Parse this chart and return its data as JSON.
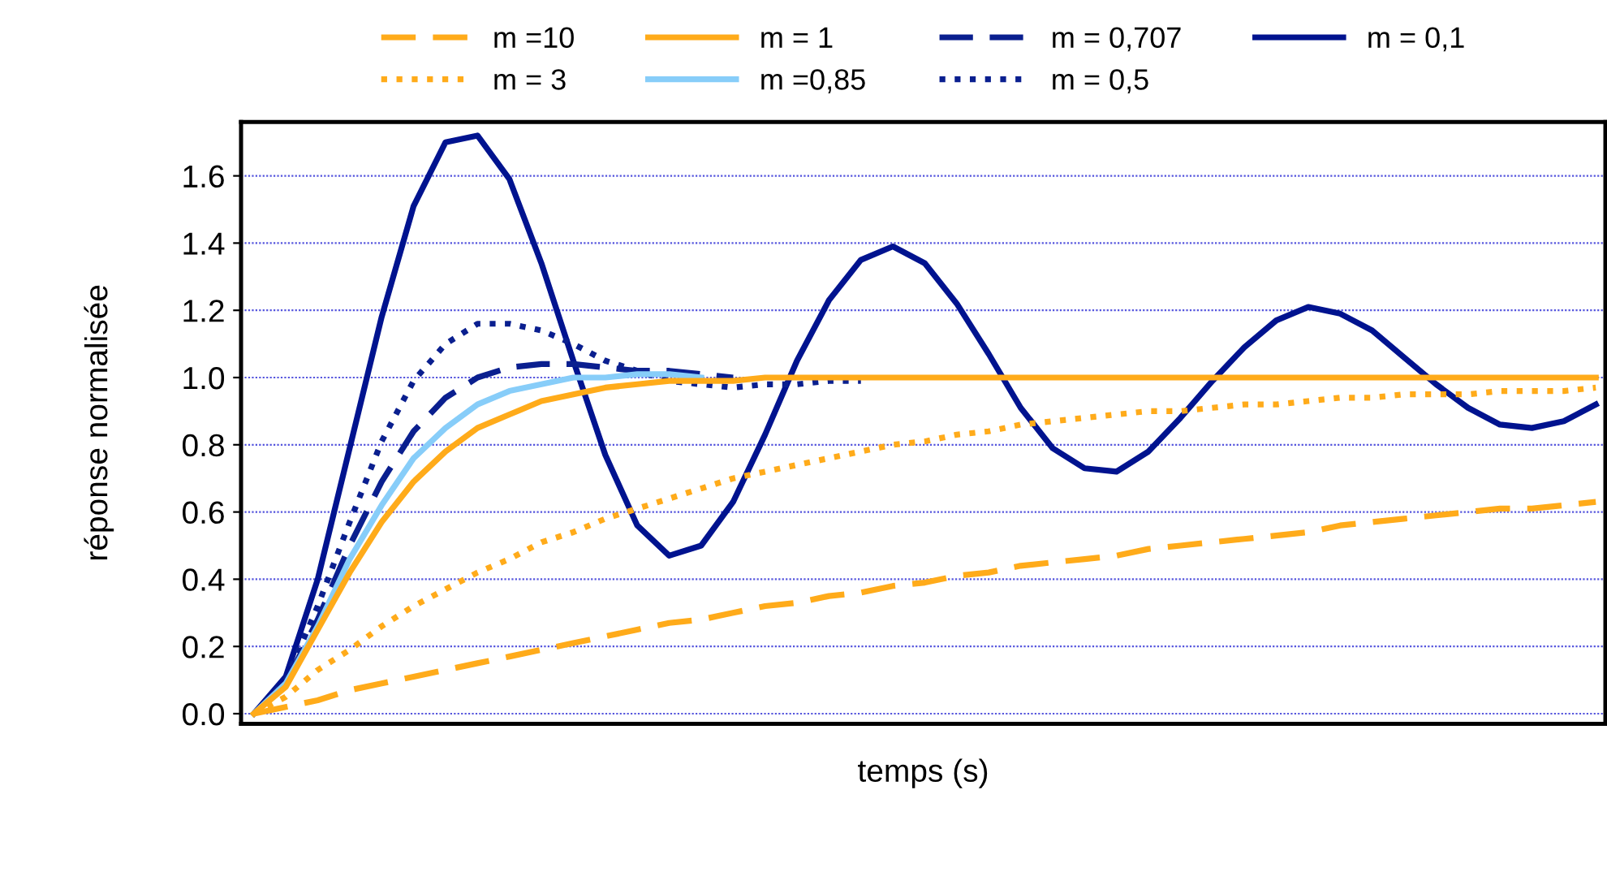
{
  "chart_data": {
    "type": "line",
    "xlabel": "temps (s)",
    "ylabel": "réponse normalisée",
    "categories": [
      null,
      null,
      null,
      null,
      null,
      null,
      null,
      null,
      null,
      null,
      null,
      null,
      null,
      null,
      null,
      null,
      null,
      null,
      null,
      null,
      null,
      null,
      null,
      null,
      null,
      null,
      null,
      null,
      null,
      null,
      null,
      null,
      null,
      null,
      null,
      null,
      null,
      null,
      null,
      null,
      null,
      null,
      null
    ],
    "ylim": [
      -0.03,
      1.76
    ],
    "yticks": [
      {
        "value": 0,
        "label": "0.0"
      },
      {
        "value": 0.2,
        "label": "0.2"
      },
      {
        "value": 0.4,
        "label": "0.4"
      },
      {
        "value": 0.6,
        "label": "0.6"
      },
      {
        "value": 0.8,
        "label": "0.8"
      },
      {
        "value": 1,
        "label": "1.0"
      },
      {
        "value": 1.2,
        "label": "1.2"
      },
      {
        "value": 1.4,
        "label": "1.4"
      },
      {
        "value": 1.6,
        "label": "1.6"
      }
    ],
    "grid": "y",
    "legend": "top",
    "marker": "none",
    "series": [
      {
        "name": "m =10",
        "color": "#ffab1a",
        "line_style": "dashed",
        "values": [
          0,
          0.02,
          0.04,
          0.07,
          0.09,
          0.11,
          0.13,
          0.15,
          0.17,
          0.19,
          0.21,
          0.23,
          0.25,
          0.27,
          0.28,
          0.3,
          0.32,
          0.33,
          0.35,
          0.36,
          0.38,
          0.39,
          0.41,
          0.42,
          0.44,
          0.45,
          0.46,
          0.47,
          0.49,
          0.5,
          0.51,
          0.52,
          0.53,
          0.54,
          0.56,
          0.57,
          0.58,
          0.59,
          0.6,
          0.61,
          0.61,
          0.62,
          0.63
        ]
      },
      {
        "name": "m = 3",
        "color": "#ffab1a",
        "line_style": "dotted",
        "values": [
          0,
          0.05,
          0.13,
          0.19,
          0.26,
          0.32,
          0.37,
          0.42,
          0.46,
          0.51,
          0.54,
          0.58,
          0.61,
          0.64,
          0.67,
          0.7,
          0.72,
          0.74,
          0.76,
          0.78,
          0.8,
          0.81,
          0.83,
          0.84,
          0.86,
          0.87,
          0.88,
          0.89,
          0.9,
          0.9,
          0.91,
          0.92,
          0.92,
          0.93,
          0.94,
          0.94,
          0.95,
          0.95,
          0.95,
          0.96,
          0.96,
          0.96,
          0.97
        ]
      },
      {
        "name": "m = 1",
        "color": "#ffab1a",
        "line_style": "solid",
        "values": [
          0,
          0.08,
          0.25,
          0.42,
          0.57,
          0.69,
          0.78,
          0.85,
          0.89,
          0.93,
          0.95,
          0.97,
          0.98,
          0.99,
          0.99,
          0.99,
          1.0,
          1.0,
          1.0,
          1.0,
          1.0,
          1.0,
          1.0,
          1.0,
          1.0,
          1.0,
          1.0,
          1.0,
          1.0,
          1.0,
          1.0,
          1.0,
          1.0,
          1.0,
          1.0,
          1.0,
          1.0,
          1.0,
          1.0,
          1.0,
          1.0,
          1.0,
          1.0
        ]
      },
      {
        "name": "m =0,85",
        "color": "#87cdf9",
        "line_style": "solid",
        "values": [
          0,
          0.09,
          0.26,
          0.46,
          0.62,
          0.76,
          0.85,
          0.92,
          0.96,
          0.98,
          1.0,
          1.0,
          1.01,
          1.01,
          1.0,
          null,
          null,
          null,
          null,
          null,
          null,
          null,
          null,
          null,
          null,
          null,
          null,
          null,
          null,
          null,
          null,
          null,
          null,
          null,
          null,
          null,
          null,
          null,
          null,
          null,
          null,
          null,
          null
        ]
      },
      {
        "name": "m = 0,707",
        "color": "#0a1f8f",
        "line_style": "dashed",
        "values": [
          0,
          0.09,
          0.28,
          0.5,
          0.69,
          0.84,
          0.94,
          1.0,
          1.03,
          1.04,
          1.04,
          1.03,
          1.02,
          1.02,
          1.01,
          1.0,
          null,
          null,
          null,
          null,
          null,
          null,
          null,
          null,
          null,
          null,
          null,
          null,
          null,
          null,
          null,
          null,
          null,
          null,
          null,
          null,
          null,
          null,
          null,
          null,
          null,
          null,
          null
        ]
      },
      {
        "name": "m = 0,5",
        "color": "#0a1f8f",
        "line_style": "dotted",
        "values": [
          0,
          0.1,
          0.32,
          0.57,
          0.81,
          0.99,
          1.1,
          1.16,
          1.16,
          1.14,
          1.1,
          1.05,
          1.02,
          0.99,
          0.98,
          0.97,
          0.98,
          0.98,
          0.99,
          0.99,
          null,
          null,
          null,
          null,
          null,
          null,
          null,
          null,
          null,
          null,
          null,
          null,
          null,
          null,
          null,
          null,
          null,
          null,
          null,
          null,
          null,
          null,
          null
        ]
      },
      {
        "name": "m = 0,1",
        "color": "#00138f",
        "line_style": "solid",
        "values": [
          0,
          0.11,
          0.4,
          0.79,
          1.18,
          1.51,
          1.7,
          1.72,
          1.59,
          1.34,
          1.05,
          0.77,
          0.56,
          0.47,
          0.5,
          0.63,
          0.83,
          1.05,
          1.23,
          1.35,
          1.39,
          1.34,
          1.22,
          1.07,
          0.91,
          0.79,
          0.73,
          0.72,
          0.78,
          0.88,
          0.99,
          1.09,
          1.17,
          1.21,
          1.19,
          1.14,
          1.06,
          0.98,
          0.91,
          0.86,
          0.85,
          0.87,
          0.92
        ]
      }
    ]
  }
}
